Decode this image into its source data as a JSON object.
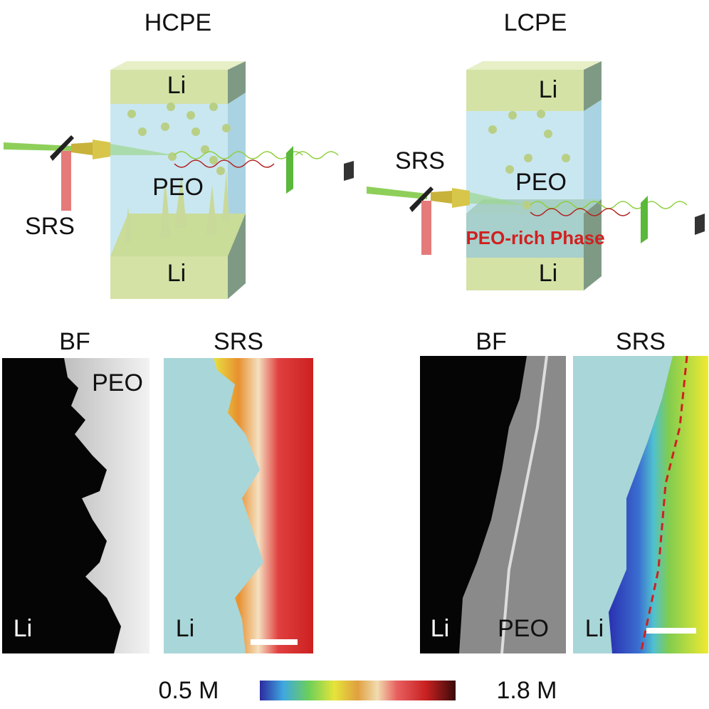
{
  "panels": {
    "hcpe": {
      "title": "HCPE",
      "top_electrode": "Li",
      "bottom_electrode": "Li",
      "electrolyte": "PEO",
      "beam": "SRS"
    },
    "lcpe": {
      "title": "LCPE",
      "top_electrode": "Li",
      "bottom_electrode": "Li",
      "electrolyte": "PEO",
      "beam": "SRS",
      "phase": "PEO-rich Phase"
    }
  },
  "images": [
    {
      "title": "BF",
      "labels": [
        "PEO",
        "Li"
      ]
    },
    {
      "title": "SRS",
      "labels": [
        "Li"
      ]
    },
    {
      "title": "BF",
      "labels": [
        "Li",
        "PEO"
      ]
    },
    {
      "title": "SRS",
      "labels": [
        "Li"
      ]
    }
  ],
  "colorbar": {
    "min_label": "0.5 M",
    "max_label": "1.8 M"
  }
}
